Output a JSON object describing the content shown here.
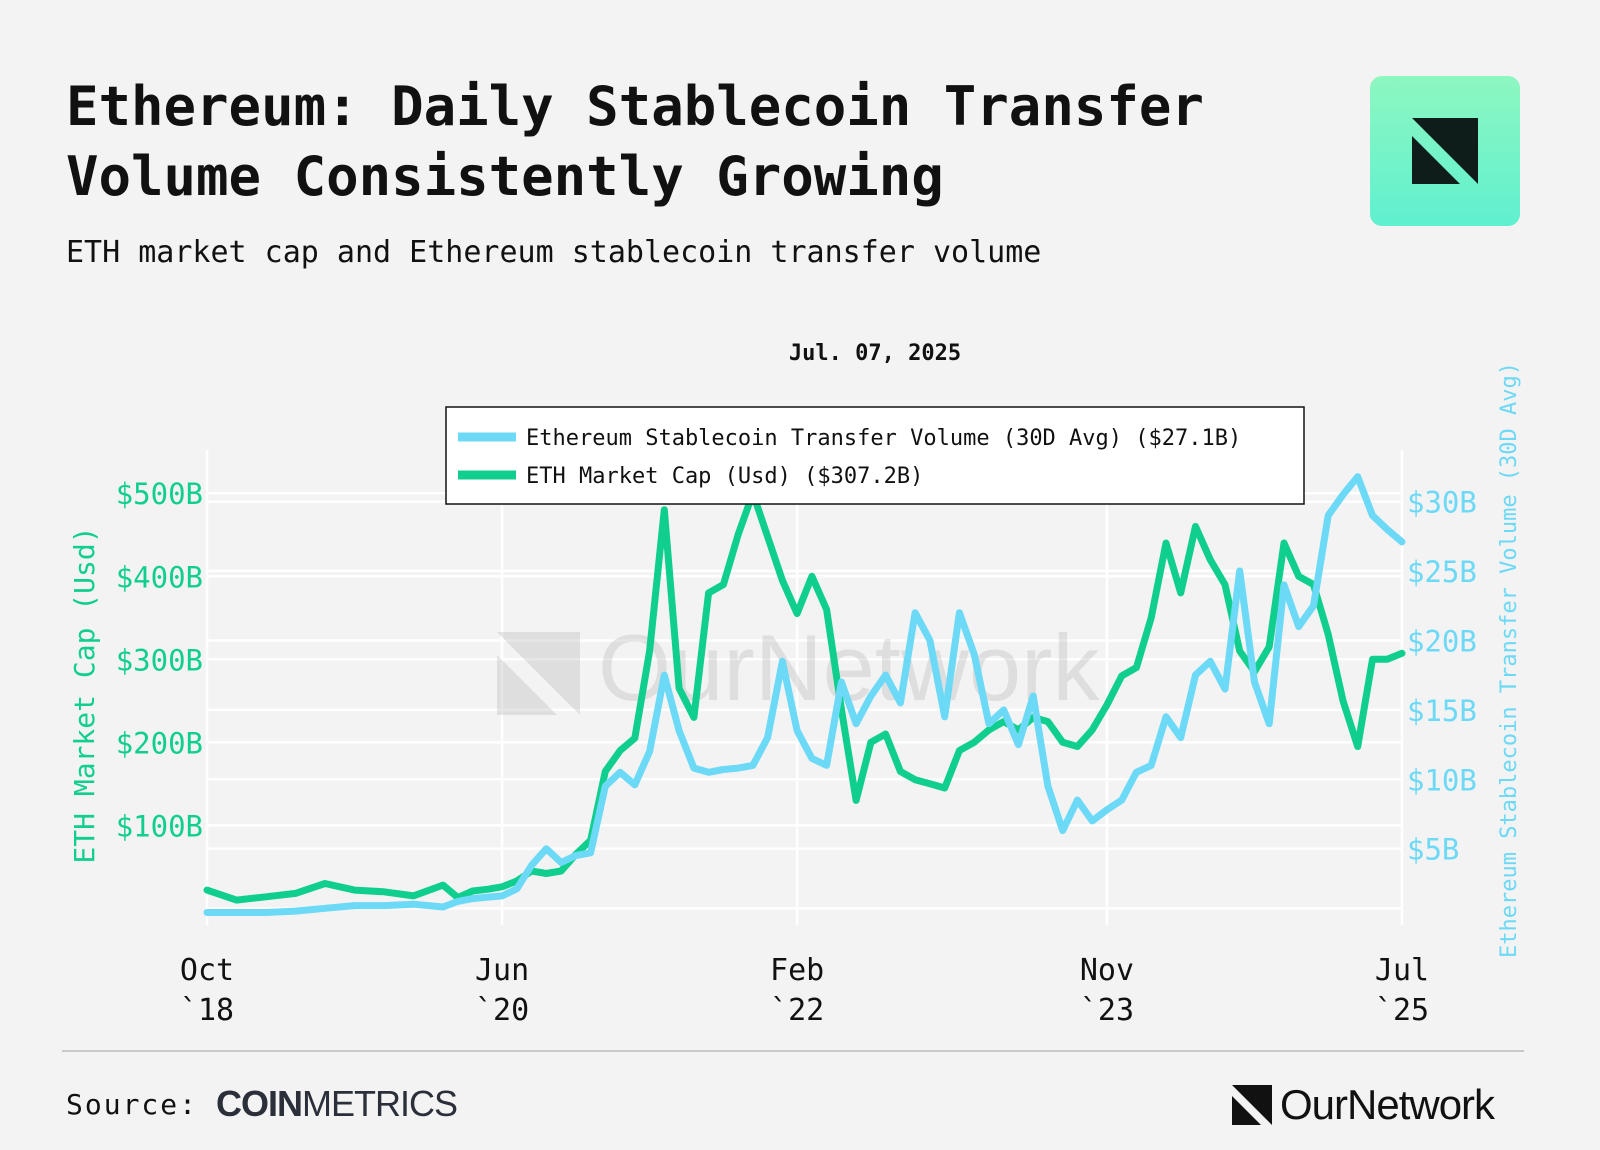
{
  "header": {
    "title": "Ethereum: Daily Stablecoin Transfer Volume Consistently Growing",
    "subtitle": "ETH market cap and Ethereum stablecoin transfer volume"
  },
  "footer": {
    "source_label": "Source:",
    "source_brand_bold": "COIN",
    "source_brand_light": "METRICS",
    "brand": "OurNetwork"
  },
  "watermark": "OurNetwork",
  "colors": {
    "market_cap": "#10cf8e",
    "transfer_volume": "#6cd9f6",
    "background": "#f3f3f3",
    "grid": "#ffffff"
  },
  "chart_data": {
    "type": "line",
    "date_label": "Jul. 07, 2025",
    "legend_position": "top-center",
    "grid": true,
    "x_ticks": [
      {
        "date": "2018-10",
        "line1": "Oct",
        "line2": "`18"
      },
      {
        "date": "2020-06",
        "line1": "Jun",
        "line2": "`20"
      },
      {
        "date": "2022-02",
        "line1": "Feb",
        "line2": "`22"
      },
      {
        "date": "2023-11",
        "line1": "Nov",
        "line2": "`23"
      },
      {
        "date": "2025-07",
        "line1": "Jul",
        "line2": "`25"
      }
    ],
    "xlim": [
      "2018-10",
      "2025-07"
    ],
    "y_left": {
      "label": "ETH Market Cap (Usd)",
      "ticks": [
        "$100B",
        "$200B",
        "$300B",
        "$400B",
        "$500B"
      ],
      "tick_values": [
        100,
        200,
        300,
        400,
        500
      ],
      "ylim": [
        -20,
        540
      ]
    },
    "y_right": {
      "label": "Ethereum Stablecoin Transfer Volume (30D Avg)",
      "ticks": [
        "$5B",
        "$10B",
        "$15B",
        "$20B",
        "$25B",
        "$30B"
      ],
      "tick_values": [
        5,
        10,
        15,
        20,
        25,
        30
      ],
      "ylim": [
        -0.5,
        33
      ]
    },
    "series": [
      {
        "name": "Ethereum Stablecoin Transfer Volume (30D Avg)",
        "legend": "Ethereum Stablecoin Transfer Volume (30D Avg) ($27.1B)",
        "axis": "right",
        "unit": "$B",
        "points": [
          [
            "2018-10",
            0.4
          ],
          [
            "2019-02",
            0.4
          ],
          [
            "2019-04",
            0.5
          ],
          [
            "2019-06",
            0.7
          ],
          [
            "2019-08",
            0.9
          ],
          [
            "2019-10",
            0.9
          ],
          [
            "2019-12",
            1.0
          ],
          [
            "2020-02",
            0.8
          ],
          [
            "2020-03",
            1.2
          ],
          [
            "2020-04",
            1.4
          ],
          [
            "2020-05",
            1.5
          ],
          [
            "2020-06",
            1.6
          ],
          [
            "2020-07",
            2.1
          ],
          [
            "2020-08",
            3.8
          ],
          [
            "2020-09",
            5.0
          ],
          [
            "2020-10",
            4.0
          ],
          [
            "2020-11",
            4.5
          ],
          [
            "2020-12",
            4.7
          ],
          [
            "2021-01",
            9.5
          ],
          [
            "2021-02",
            10.5
          ],
          [
            "2021-03",
            9.6
          ],
          [
            "2021-04",
            12.0
          ],
          [
            "2021-05",
            17.5
          ],
          [
            "2021-06",
            13.5
          ],
          [
            "2021-07",
            10.8
          ],
          [
            "2021-08",
            10.5
          ],
          [
            "2021-09",
            10.7
          ],
          [
            "2021-10",
            10.8
          ],
          [
            "2021-11",
            11.0
          ],
          [
            "2021-12",
            13.0
          ],
          [
            "2022-01",
            18.5
          ],
          [
            "2022-02",
            13.5
          ],
          [
            "2022-03",
            11.5
          ],
          [
            "2022-04",
            11.0
          ],
          [
            "2022-05",
            17.0
          ],
          [
            "2022-06",
            14.0
          ],
          [
            "2022-07",
            16.0
          ],
          [
            "2022-08",
            17.5
          ],
          [
            "2022-09",
            15.5
          ],
          [
            "2022-10",
            22.0
          ],
          [
            "2022-11",
            20.0
          ],
          [
            "2022-12",
            14.5
          ],
          [
            "2023-01",
            22.0
          ],
          [
            "2023-02",
            19.0
          ],
          [
            "2023-03",
            14.0
          ],
          [
            "2023-04",
            15.0
          ],
          [
            "2023-05",
            12.5
          ],
          [
            "2023-06",
            16.0
          ],
          [
            "2023-07",
            9.5
          ],
          [
            "2023-08",
            6.3
          ],
          [
            "2023-09",
            8.5
          ],
          [
            "2023-10",
            7.0
          ],
          [
            "2023-11",
            7.8
          ],
          [
            "2023-12",
            8.5
          ],
          [
            "2024-01",
            10.5
          ],
          [
            "2024-02",
            11.0
          ],
          [
            "2024-03",
            14.5
          ],
          [
            "2024-04",
            13.0
          ],
          [
            "2024-05",
            17.5
          ],
          [
            "2024-06",
            18.5
          ],
          [
            "2024-07",
            16.5
          ],
          [
            "2024-08",
            25.0
          ],
          [
            "2024-09",
            17.0
          ],
          [
            "2024-10",
            14.0
          ],
          [
            "2024-11",
            24.0
          ],
          [
            "2024-12",
            21.0
          ],
          [
            "2025-01",
            22.5
          ],
          [
            "2025-02",
            29.0
          ],
          [
            "2025-03",
            30.5
          ],
          [
            "2025-04",
            31.8
          ],
          [
            "2025-05",
            29.0
          ],
          [
            "2025-06",
            28.0
          ],
          [
            "2025-07",
            27.1
          ]
        ]
      },
      {
        "name": "ETH Market Cap (Usd)",
        "legend": "ETH Market Cap (Usd) ($307.2B)",
        "axis": "left",
        "unit": "$B",
        "points": [
          [
            "2018-10",
            22
          ],
          [
            "2018-12",
            10
          ],
          [
            "2019-02",
            14
          ],
          [
            "2019-04",
            18
          ],
          [
            "2019-06",
            30
          ],
          [
            "2019-08",
            22
          ],
          [
            "2019-10",
            20
          ],
          [
            "2019-12",
            15
          ],
          [
            "2020-02",
            28
          ],
          [
            "2020-03",
            13
          ],
          [
            "2020-04",
            21
          ],
          [
            "2020-05",
            23
          ],
          [
            "2020-06",
            26
          ],
          [
            "2020-07",
            33
          ],
          [
            "2020-08",
            45
          ],
          [
            "2020-09",
            42
          ],
          [
            "2020-10",
            45
          ],
          [
            "2020-11",
            65
          ],
          [
            "2020-12",
            82
          ],
          [
            "2021-01",
            165
          ],
          [
            "2021-02",
            190
          ],
          [
            "2021-03",
            205
          ],
          [
            "2021-04",
            310
          ],
          [
            "2021-05",
            480
          ],
          [
            "2021-06",
            265
          ],
          [
            "2021-07",
            230
          ],
          [
            "2021-08",
            380
          ],
          [
            "2021-09",
            390
          ],
          [
            "2021-10",
            450
          ],
          [
            "2021-11",
            500
          ],
          [
            "2022-01",
            395
          ],
          [
            "2022-02",
            355
          ],
          [
            "2022-03",
            400
          ],
          [
            "2022-04",
            360
          ],
          [
            "2022-05",
            240
          ],
          [
            "2022-06",
            130
          ],
          [
            "2022-07",
            200
          ],
          [
            "2022-08",
            210
          ],
          [
            "2022-09",
            165
          ],
          [
            "2022-10",
            155
          ],
          [
            "2022-11",
            150
          ],
          [
            "2022-12",
            145
          ],
          [
            "2023-01",
            190
          ],
          [
            "2023-02",
            200
          ],
          [
            "2023-03",
            215
          ],
          [
            "2023-04",
            225
          ],
          [
            "2023-05",
            215
          ],
          [
            "2023-06",
            230
          ],
          [
            "2023-07",
            225
          ],
          [
            "2023-08",
            200
          ],
          [
            "2023-09",
            195
          ],
          [
            "2023-10",
            215
          ],
          [
            "2023-11",
            245
          ],
          [
            "2023-12",
            280
          ],
          [
            "2024-01",
            290
          ],
          [
            "2024-02",
            350
          ],
          [
            "2024-03",
            440
          ],
          [
            "2024-04",
            380
          ],
          [
            "2024-05",
            460
          ],
          [
            "2024-06",
            420
          ],
          [
            "2024-07",
            390
          ],
          [
            "2024-08",
            310
          ],
          [
            "2024-09",
            285
          ],
          [
            "2024-10",
            315
          ],
          [
            "2024-11",
            440
          ],
          [
            "2024-12",
            400
          ],
          [
            "2025-01",
            390
          ],
          [
            "2025-02",
            330
          ],
          [
            "2025-03",
            250
          ],
          [
            "2025-04",
            195
          ],
          [
            "2025-05",
            300
          ],
          [
            "2025-06",
            300
          ],
          [
            "2025-07",
            307.2
          ]
        ]
      }
    ]
  }
}
